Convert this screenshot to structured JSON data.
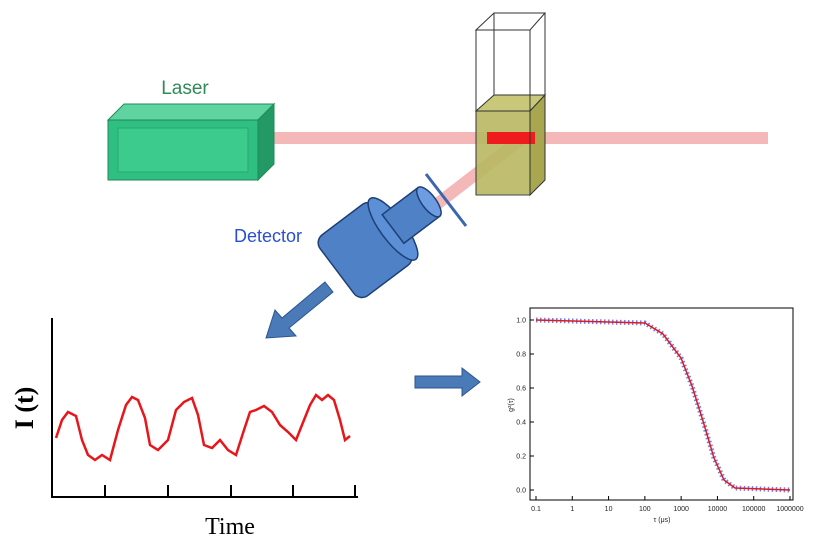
{
  "labels": {
    "laser": "Laser",
    "detector": "Detector"
  },
  "intensity_plot": {
    "y_label": "I (t)",
    "x_label": "Time"
  },
  "correlation_plot": {
    "y_label": "g²(τ)",
    "x_label": "τ (μs)",
    "yticks": [
      "0.0",
      "0.2",
      "0.4",
      "0.6",
      "0.8",
      "1.0"
    ],
    "xticks": [
      "0.1",
      "1",
      "10",
      "100",
      "1000",
      "10000",
      "100000",
      "1000000"
    ]
  }
}
